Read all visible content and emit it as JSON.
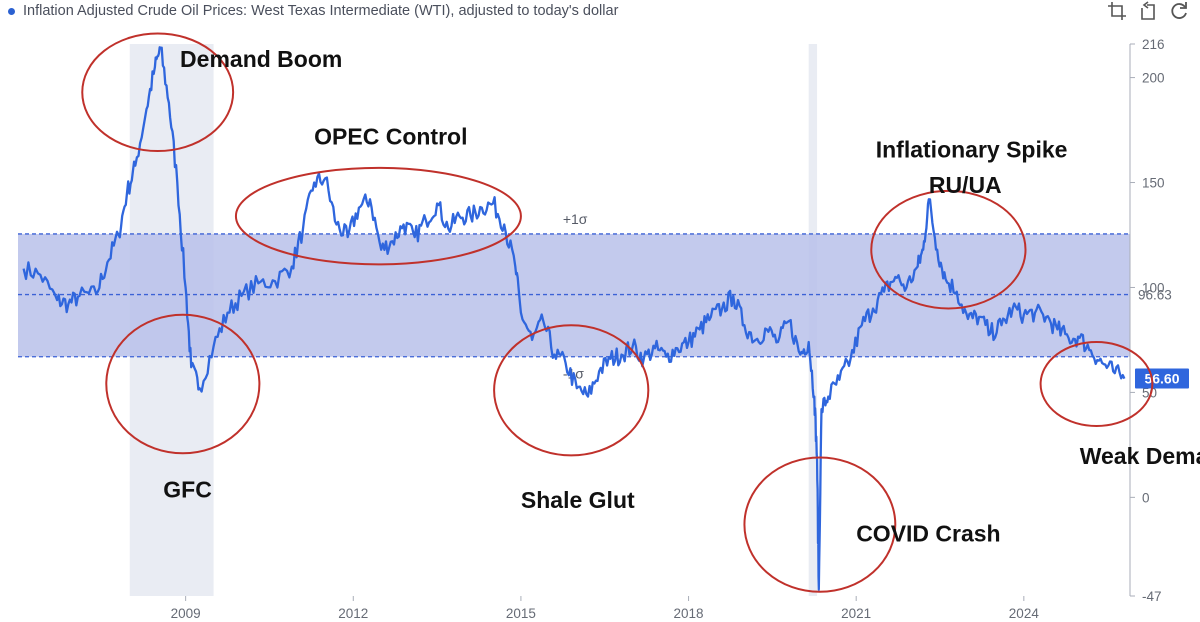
{
  "header": {
    "title": "Inflation Adjusted Crude Oil Prices: West Texas Intermediate (WTI), adjusted to today's dollar",
    "tools": [
      {
        "name": "crop-icon"
      },
      {
        "name": "reset-icon"
      },
      {
        "name": "refresh-icon"
      }
    ]
  },
  "chart_data": {
    "type": "line",
    "title": "Inflation Adjusted Crude Oil Prices: West Texas Intermediate (WTI), adjusted to today's dollar",
    "series": [
      {
        "color": "#2f66dd",
        "x": [
          2006.1,
          2006.4,
          2006.7,
          2006.9,
          2007.1,
          2007.4,
          2007.6,
          2007.8,
          2007.95,
          2008.1,
          2008.3,
          2008.45,
          2008.55,
          2008.7,
          2008.85,
          2009.0,
          2009.1,
          2009.25,
          2009.5,
          2009.75,
          2010.0,
          2010.3,
          2010.6,
          2010.9,
          2011.1,
          2011.3,
          2011.5,
          2011.7,
          2011.9,
          2012.1,
          2012.3,
          2012.5,
          2012.7,
          2012.9,
          2013.1,
          2013.3,
          2013.5,
          2013.7,
          2013.9,
          2014.1,
          2014.3,
          2014.5,
          2014.7,
          2014.9,
          2015.0,
          2015.2,
          2015.4,
          2015.6,
          2015.8,
          2016.0,
          2016.2,
          2016.4,
          2016.6,
          2016.8,
          2017.0,
          2017.2,
          2017.4,
          2017.6,
          2017.8,
          2018.0,
          2018.2,
          2018.4,
          2018.6,
          2018.8,
          2019.0,
          2019.2,
          2019.4,
          2019.6,
          2019.8,
          2020.0,
          2020.15,
          2020.25,
          2020.3,
          2020.33,
          2020.38,
          2020.5,
          2020.7,
          2020.9,
          2021.1,
          2021.3,
          2021.5,
          2021.7,
          2021.9,
          2022.1,
          2022.2,
          2022.3,
          2022.45,
          2022.6,
          2022.8,
          2023.0,
          2023.2,
          2023.4,
          2023.6,
          2023.8,
          2024.0,
          2024.2,
          2024.4,
          2024.6,
          2024.8,
          2025.0,
          2025.2,
          2025.4,
          2025.6,
          2025.8
        ],
        "y": [
          109,
          106,
          94,
          92,
          96,
          97,
          112,
          125,
          145,
          158,
          185,
          205,
          214,
          188,
          150,
          100,
          62,
          52,
          72,
          88,
          96,
          102,
          103,
          110,
          128,
          150,
          152,
          130,
          124,
          138,
          142,
          118,
          122,
          130,
          124,
          132,
          140,
          128,
          134,
          134,
          138,
          140,
          130,
          110,
          88,
          75,
          84,
          68,
          64,
          52,
          48,
          60,
          66,
          68,
          72,
          66,
          71,
          67,
          71,
          74,
          80,
          86,
          90,
          96,
          82,
          75,
          80,
          74,
          84,
          68,
          74,
          48,
          18,
          -44,
          42,
          48,
          56,
          66,
          82,
          90,
          98,
          105,
          100,
          110,
          118,
          142,
          118,
          104,
          98,
          85,
          86,
          78,
          82,
          90,
          87,
          88,
          86,
          80,
          76,
          76,
          70,
          64,
          60,
          56.6
        ]
      }
    ],
    "xticks": [
      {
        "x": 2009,
        "label": "2009"
      },
      {
        "x": 2012,
        "label": "2012"
      },
      {
        "x": 2015,
        "label": "2015"
      },
      {
        "x": 2018,
        "label": "2018"
      },
      {
        "x": 2021,
        "label": "2021"
      },
      {
        "x": 2024,
        "label": "2024"
      }
    ],
    "yticks": [
      -47,
      0,
      50,
      100,
      150,
      200,
      216
    ],
    "xlim": [
      2006.0,
      2025.9
    ],
    "ylim": [
      -47,
      216
    ],
    "mean": {
      "value": 96.63,
      "label": "96.63"
    },
    "band": {
      "upper": 125.5,
      "lower": 67.0,
      "upper_label": "+1σ",
      "lower_label": "-1σ",
      "color": "#b8c1ea"
    },
    "last_value": {
      "value": 56.6,
      "label": "56.60",
      "color": "#2f66dd"
    },
    "recessions": [
      {
        "start": 2008.0,
        "end": 2009.5
      },
      {
        "start": 2020.15,
        "end": 2020.3
      }
    ],
    "annotations": [
      {
        "label": "Demand Boom",
        "x": 2008.5,
        "y": 193,
        "rx_years": 1.35,
        "ry_units": 28,
        "text_x": 2008.9,
        "text_y": 205
      },
      {
        "label": "OPEC Control",
        "x": 2012.45,
        "y": 134,
        "rx_years": 2.55,
        "ry_units": 23,
        "text_x": 2011.3,
        "text_y": 168
      },
      {
        "label": "GFC",
        "x": 2008.95,
        "y": 54,
        "rx_years": 1.37,
        "ry_units": 33,
        "text_x": 2008.6,
        "text_y": -0.1
      },
      {
        "label": "Shale Glut",
        "x": 2015.9,
        "y": 51,
        "rx_years": 1.38,
        "ry_units": 31,
        "text_x": 2015.0,
        "text_y": -5
      },
      {
        "label": "Inflationary Spike",
        "x": 2022.65,
        "y": 118,
        "rx_years": 1.38,
        "ry_units": 28,
        "text_x": 2021.35,
        "text_y": 162
      },
      {
        "label": "RU/UA",
        "x": 2022.65,
        "y": 118,
        "rx_years": 0,
        "ry_units": 0,
        "text_x": 2022.3,
        "text_y": 145
      },
      {
        "label": "COVID Crash",
        "x": 2020.35,
        "y": -13,
        "rx_years": 1.35,
        "ry_units": 32,
        "text_x": 2021.0,
        "text_y": -21
      },
      {
        "label": "Weak Demand",
        "x": 2025.3,
        "y": 54,
        "rx_years": 1.0,
        "ry_units": 20,
        "text_x": 2025.0,
        "text_y": 16
      }
    ]
  }
}
